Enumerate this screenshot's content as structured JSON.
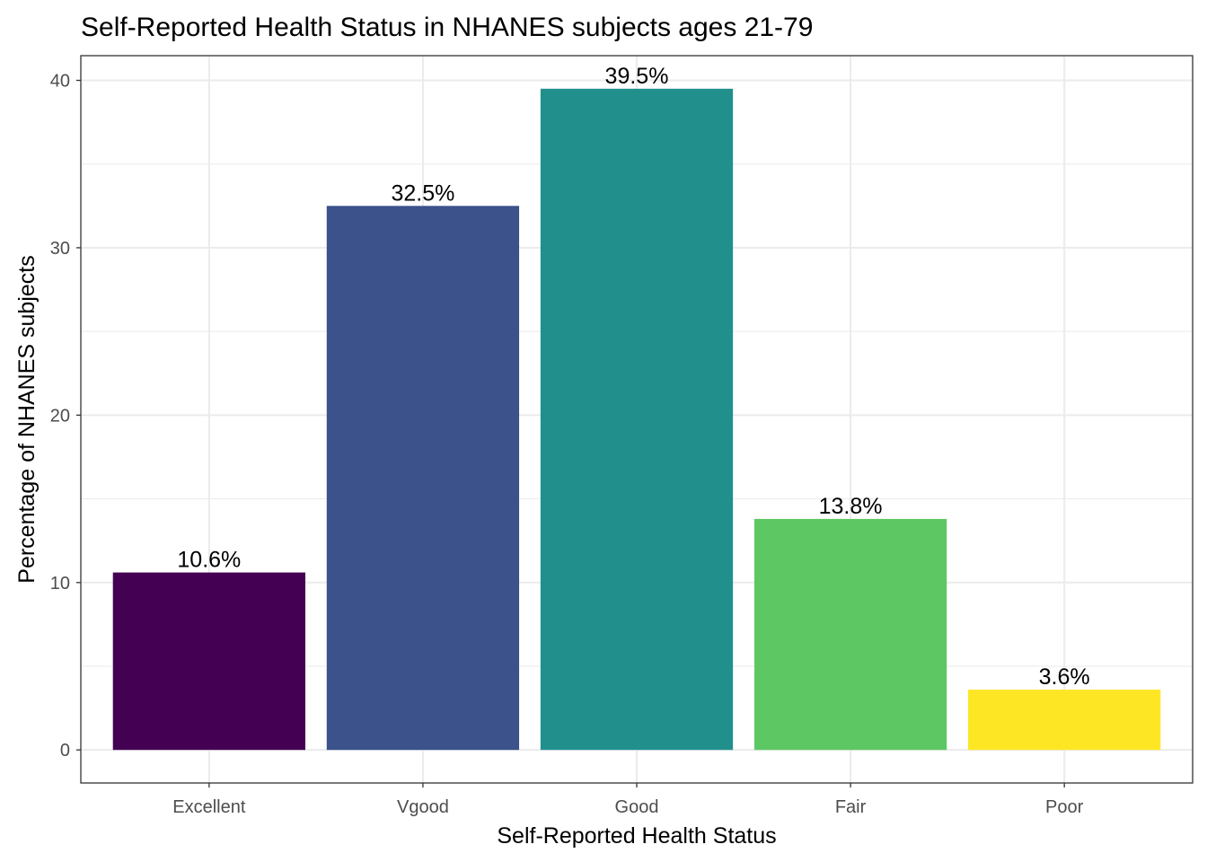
{
  "chart_data": {
    "type": "bar",
    "title": "Self-Reported Health Status in NHANES subjects ages 21-79",
    "xlabel": "Self-Reported Health Status",
    "ylabel": "Percentage of NHANES subjects",
    "categories": [
      "Excellent",
      "Vgood",
      "Good",
      "Fair",
      "Poor"
    ],
    "values": [
      10.6,
      32.5,
      39.5,
      13.8,
      3.6
    ],
    "value_labels": [
      "10.6%",
      "32.5%",
      "39.5%",
      "13.8%",
      "3.6%"
    ],
    "colors": [
      "#440154",
      "#3B528B",
      "#21908C",
      "#5DC863",
      "#FDE725"
    ],
    "yticks": [
      0,
      10,
      20,
      30,
      40
    ],
    "ytick_labels": [
      "0",
      "10",
      "20",
      "30",
      "40"
    ],
    "ylim": [
      -1.975,
      41.475
    ],
    "grid": true,
    "legend": "none"
  }
}
